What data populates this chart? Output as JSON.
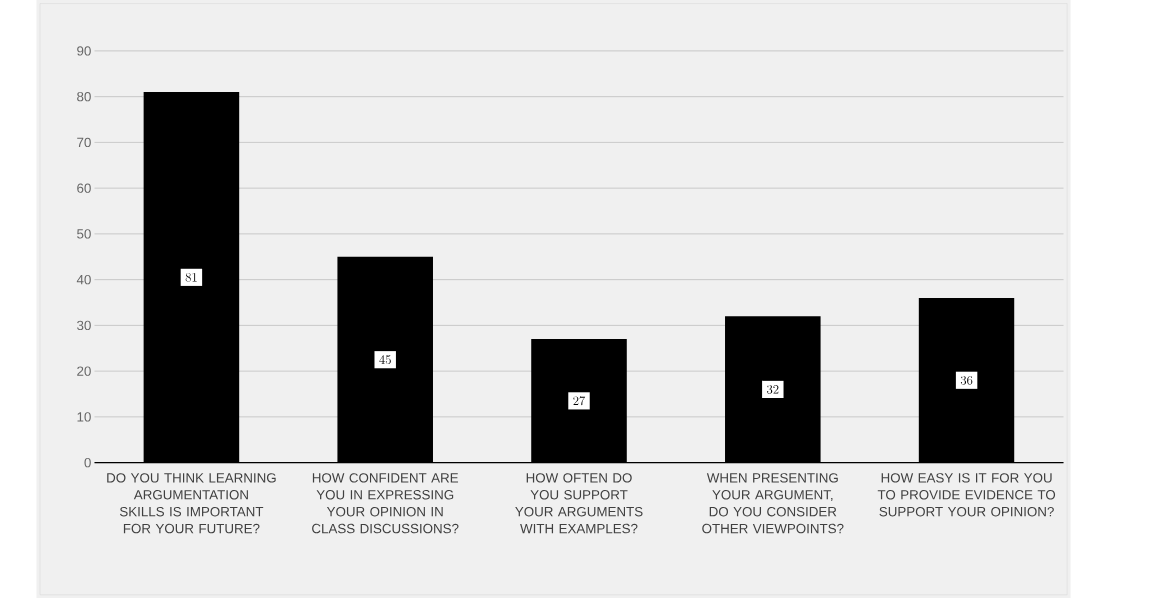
{
  "chart_data": {
    "type": "bar",
    "categories": [
      "DO YOU THINK LEARNING ARGUMENTATION SKILLS IS IMPORTANT FOR YOUR FUTURE?",
      "HOW CONFIDENT ARE YOU IN EXPRESSING YOUR OPINION IN CLASS DISCUSSIONS?",
      "HOW OFTEN DO YOU SUPPORT YOUR ARGUMENTS WITH EXAMPLES?",
      "WHEN PRESENTING YOUR ARGUMENT, DO YOU CONSIDER OTHER VIEWPOINTS?",
      "HOW EASY IS IT FOR YOU TO PROVIDE EVIDENCE TO SUPPORT YOUR OPINION?"
    ],
    "values": [
      81,
      45,
      27,
      32,
      36
    ],
    "color": "#000000",
    "ylim": [
      0,
      90
    ],
    "yticks": [
      0,
      10,
      20,
      30,
      40,
      50,
      60,
      70,
      80,
      90
    ],
    "grid": "y",
    "data_labels": true
  }
}
